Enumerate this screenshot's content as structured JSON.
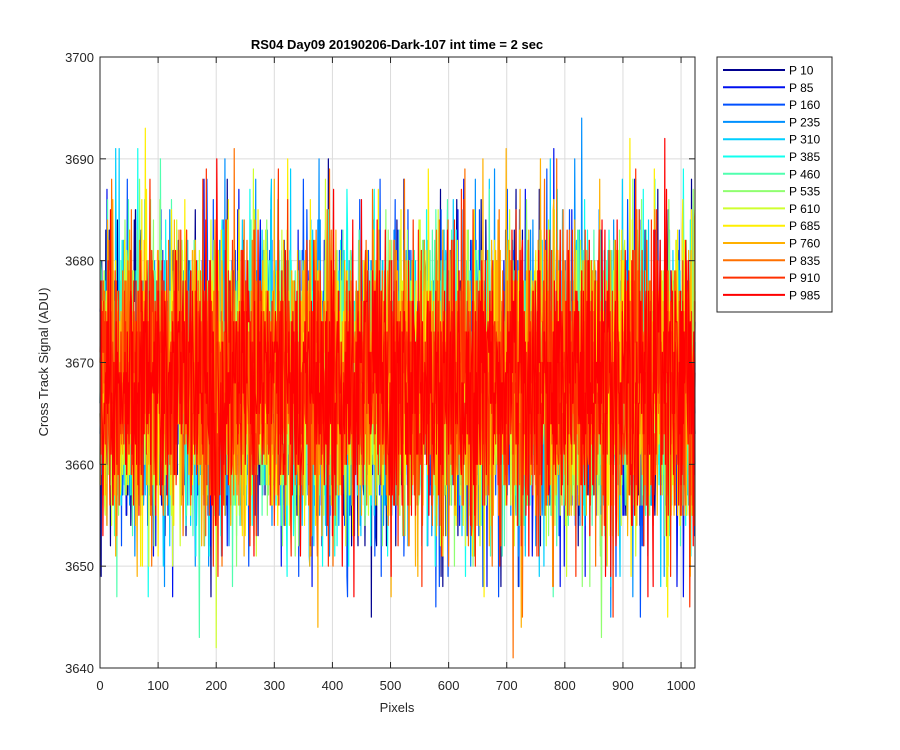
{
  "chart_data": {
    "type": "line",
    "title": "RS04 Day09 20190206-Dark-107 int time = 2 sec",
    "xlabel": "Pixels",
    "ylabel": "Cross Track Signal (ADU)",
    "xlim": [
      0,
      1024
    ],
    "ylim": [
      3640,
      3700
    ],
    "xticks": [
      0,
      100,
      200,
      300,
      400,
      500,
      600,
      700,
      800,
      900,
      1000
    ],
    "yticks": [
      3640,
      3650,
      3660,
      3670,
      3680,
      3690,
      3700
    ],
    "grid": true,
    "legend_position": "outside-right",
    "noise_model": {
      "mean": 3668,
      "typical_range": [
        3653,
        3683
      ],
      "extreme_range": [
        3640,
        3697
      ]
    },
    "series": [
      {
        "name": "P 10",
        "color": "#00008F"
      },
      {
        "name": "P 85",
        "color": "#0010EF"
      },
      {
        "name": "P 160",
        "color": "#0050FF"
      },
      {
        "name": "P 235",
        "color": "#0090FF"
      },
      {
        "name": "P 310",
        "color": "#00CFFF"
      },
      {
        "name": "P 385",
        "color": "#10FFEF"
      },
      {
        "name": "P 460",
        "color": "#50FFAF"
      },
      {
        "name": "P 535",
        "color": "#90FF70"
      },
      {
        "name": "P 610",
        "color": "#CFFF30"
      },
      {
        "name": "P 685",
        "color": "#FFEF00"
      },
      {
        "name": "P 760",
        "color": "#FFB000"
      },
      {
        "name": "P 835",
        "color": "#FF7000"
      },
      {
        "name": "P 910",
        "color": "#FF3000"
      },
      {
        "name": "P 985",
        "color": "#FF0000"
      }
    ]
  }
}
